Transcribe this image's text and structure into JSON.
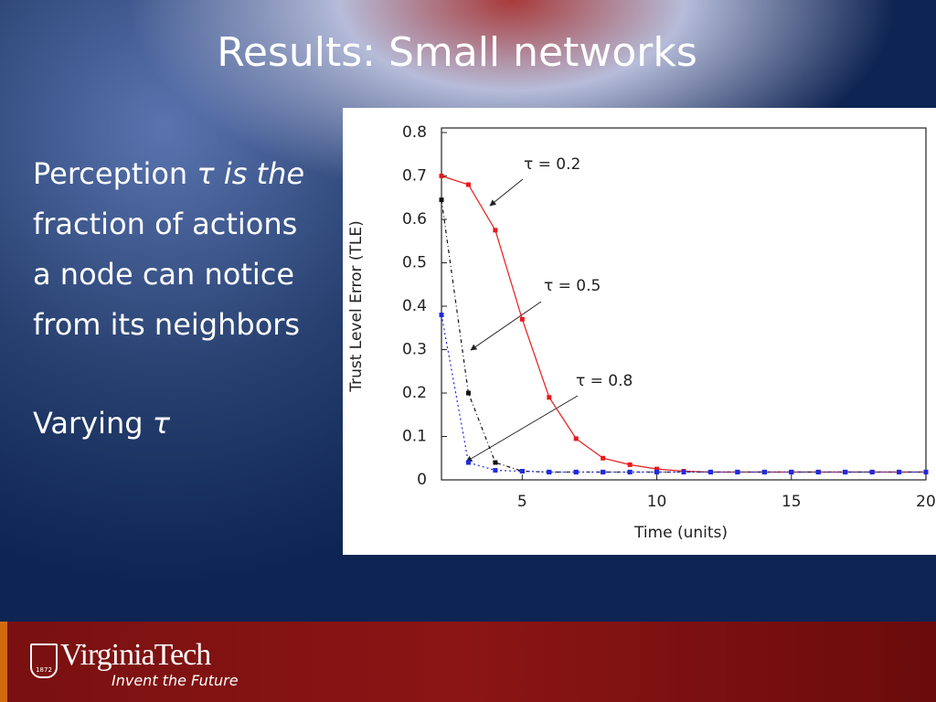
{
  "slide": {
    "title": "Results: Small networks",
    "paragraph": {
      "lead": "Perception",
      "emphasis": "τ is the",
      "lines": [
        "fraction of actions",
        "a node can notice",
        "from its neighbors"
      ]
    },
    "varying": {
      "text": "Varying",
      "symbol": "τ"
    },
    "footer": {
      "logo": "VirginiaTech",
      "tagline": "Invent the Future",
      "year": "1872"
    }
  },
  "chart_data": {
    "type": "line",
    "x_label": "Time (units)",
    "y_label": "Trust Level Error (TLE)",
    "x": [
      2,
      3,
      4,
      5,
      6,
      7,
      8,
      9,
      10,
      11,
      12,
      13,
      14,
      15,
      16,
      17,
      18,
      19,
      20
    ],
    "xlim": [
      2,
      20
    ],
    "xticks": [
      5,
      10,
      15,
      20
    ],
    "ylim": [
      0,
      0.8
    ],
    "yticks": [
      0,
      0.1,
      0.2,
      0.3,
      0.4,
      0.5,
      0.6,
      0.7,
      0.8
    ],
    "annotations": [
      "τ = 0.2",
      "τ = 0.5",
      "τ = 0.8"
    ],
    "series": [
      {
        "color": "#e8191b",
        "values": [
          0.7,
          0.68,
          0.575,
          0.37,
          0.19,
          0.095,
          0.05,
          0.035,
          0.025,
          0.02,
          0.018,
          0.018,
          0.018,
          0.018,
          0.018,
          0.018,
          0.018,
          0.018,
          0.018
        ]
      },
      {
        "color": "#111111",
        "values": [
          0.645,
          0.2,
          0.04,
          0.02,
          0.018,
          0.018,
          0.018,
          0.018,
          0.018,
          0.018,
          0.018,
          0.018,
          0.018,
          0.018,
          0.018,
          0.018,
          0.018,
          0.018,
          0.018
        ]
      },
      {
        "color": "#1f2be0",
        "values": [
          0.38,
          0.04,
          0.022,
          0.02,
          0.018,
          0.018,
          0.018,
          0.018,
          0.018,
          0.018,
          0.018,
          0.018,
          0.018,
          0.018,
          0.018,
          0.018,
          0.018,
          0.018,
          0.018
        ]
      }
    ]
  }
}
